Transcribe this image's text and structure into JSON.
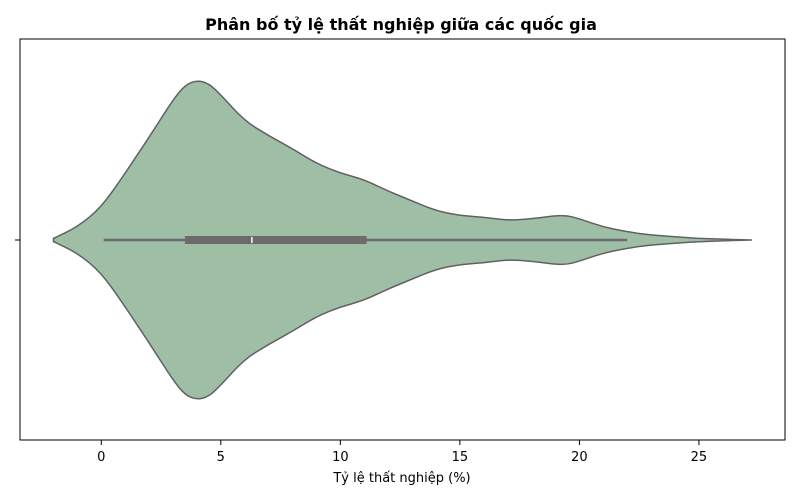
{
  "chart_data": {
    "type": "violin",
    "title": "Phân bố tỷ lệ thất nghiệp giữa các quốc gia",
    "xlabel": "Tỷ lệ thất nghiệp (%)",
    "ylabel": "",
    "xlim": [
      -3.4,
      28.6
    ],
    "xticks": [
      0,
      5,
      10,
      15,
      20,
      25
    ],
    "xtick_labels": [
      "0",
      "5",
      "10",
      "15",
      "20",
      "25"
    ],
    "grid": false,
    "orientation": "horizontal",
    "colors": {
      "violin_fill": "#9ebfa6",
      "violin_edge": "#616161",
      "box": "#6b6b6b",
      "median": "#ffffff"
    },
    "violin": {
      "density_x": [
        -2.0,
        -1.0,
        0.0,
        1.0,
        2.0,
        3.0,
        3.5,
        4.0,
        4.5,
        5.0,
        6.0,
        7.0,
        8.0,
        9.0,
        10.0,
        11.0,
        12.0,
        13.0,
        14.0,
        15.0,
        16.0,
        17.0,
        18.0,
        19.0,
        19.5,
        20.0,
        21.0,
        22.0,
        23.0,
        24.0,
        25.0,
        26.0,
        27.2
      ],
      "density_relative": [
        0.01,
        0.08,
        0.2,
        0.41,
        0.63,
        0.86,
        0.95,
        0.98,
        0.96,
        0.89,
        0.73,
        0.64,
        0.56,
        0.47,
        0.41,
        0.37,
        0.3,
        0.24,
        0.18,
        0.15,
        0.14,
        0.12,
        0.13,
        0.15,
        0.15,
        0.13,
        0.08,
        0.05,
        0.03,
        0.02,
        0.01,
        0.005,
        0.0
      ]
    },
    "box": {
      "whisker_low": 0.1,
      "q1": 3.5,
      "median": 6.3,
      "q3": 11.1,
      "whisker_high": 22.0
    }
  }
}
